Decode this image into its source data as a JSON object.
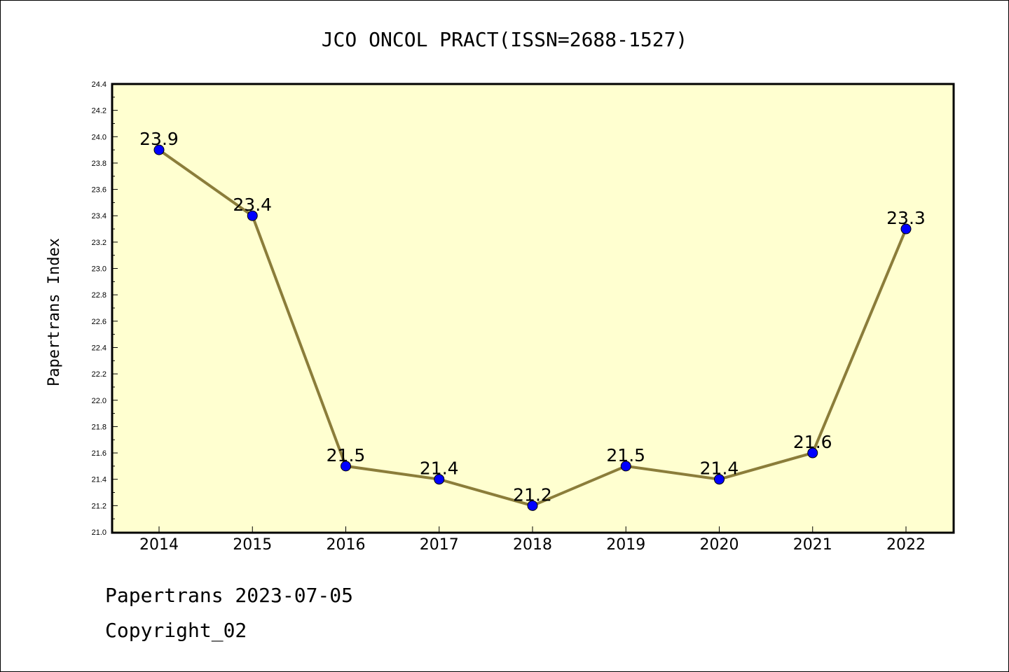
{
  "chart_data": {
    "type": "line",
    "title": "JCO ONCOL PRACT(ISSN=2688-1527)",
    "xlabel": "",
    "ylabel": "Papertrans Index",
    "categories": [
      "2014",
      "2015",
      "2016",
      "2017",
      "2018",
      "2019",
      "2020",
      "2021",
      "2022"
    ],
    "series": [
      {
        "values": [
          23.9,
          23.4,
          21.5,
          21.4,
          21.2,
          21.5,
          21.4,
          21.6,
          23.3
        ],
        "labels": [
          "23.9",
          "23.4",
          "21.5",
          "21.4",
          "21.2",
          "21.5",
          "21.4",
          "21.6",
          "23.3"
        ]
      }
    ],
    "ylim": [
      21.0,
      24.4
    ],
    "yticks": [
      "21.0",
      "21.2",
      "21.4",
      "21.6",
      "21.8",
      "22.0",
      "22.2",
      "22.4",
      "22.6",
      "22.8",
      "23.0",
      "23.2",
      "23.4",
      "23.6",
      "23.8",
      "24.0",
      "24.2",
      "24.4"
    ],
    "grid": false,
    "colors": {
      "plot_background": "#ffffd0",
      "line": "#8b7d3a",
      "marker": "#0000ff"
    }
  },
  "footer": {
    "line1": "Papertrans 2023-07-05",
    "line2": "Copyright_02"
  }
}
